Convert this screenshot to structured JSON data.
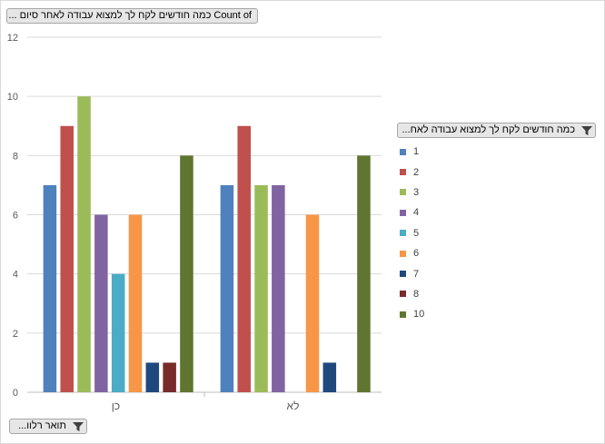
{
  "field_buttons": {
    "values_field": "Count of כמה חודשים לקח לך למצוא עבודה לאחר סיום ...",
    "legend_field": "כמה חודשים לקח לך למצוא עבודה לאח...",
    "axis_field": "תואר רלוו..."
  },
  "icons": {
    "values_field": "dropdown-arrow-icon",
    "legend_field": "filter-funnel-icon",
    "axis_field": "filter-funnel-icon"
  },
  "chart_data": {
    "type": "bar",
    "categories": [
      "כן",
      "לא"
    ],
    "series": [
      {
        "name": "1",
        "color": "#4f81bd",
        "values": [
          7,
          7
        ]
      },
      {
        "name": "2",
        "color": "#c0504d",
        "values": [
          9,
          9
        ]
      },
      {
        "name": "3",
        "color": "#9bbb59",
        "values": [
          10,
          7
        ]
      },
      {
        "name": "4",
        "color": "#8064a2",
        "values": [
          6,
          7
        ]
      },
      {
        "name": "5",
        "color": "#4bacc6",
        "values": [
          4,
          null
        ]
      },
      {
        "name": "6",
        "color": "#f79646",
        "values": [
          6,
          6
        ]
      },
      {
        "name": "7",
        "color": "#1f497d",
        "values": [
          1,
          1
        ]
      },
      {
        "name": "8",
        "color": "#772c2a",
        "values": [
          1,
          null
        ]
      },
      {
        "name": "10",
        "color": "#5f7530",
        "values": [
          8,
          8
        ]
      }
    ],
    "ylim": [
      0,
      12
    ],
    "yticks": [
      "0",
      "2",
      "4",
      "6",
      "8",
      "10",
      "12"
    ],
    "grid": true,
    "legend_position": "right"
  }
}
